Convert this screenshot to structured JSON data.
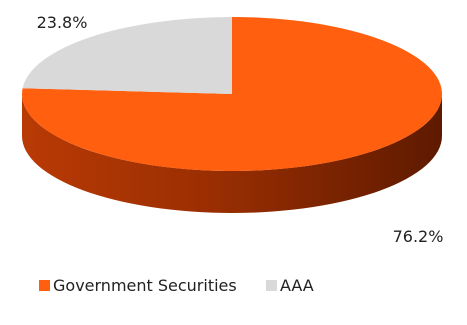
{
  "chart_data": {
    "type": "pie",
    "style": "3d",
    "slices": [
      {
        "name": "Government Securities",
        "value": 76.2,
        "label": "76.2%",
        "color": "#FF5F0F"
      },
      {
        "name": "AAA",
        "value": 23.8,
        "label": "23.8%",
        "color": "#D9D9D9"
      }
    ],
    "legend_position": "bottom-left"
  }
}
